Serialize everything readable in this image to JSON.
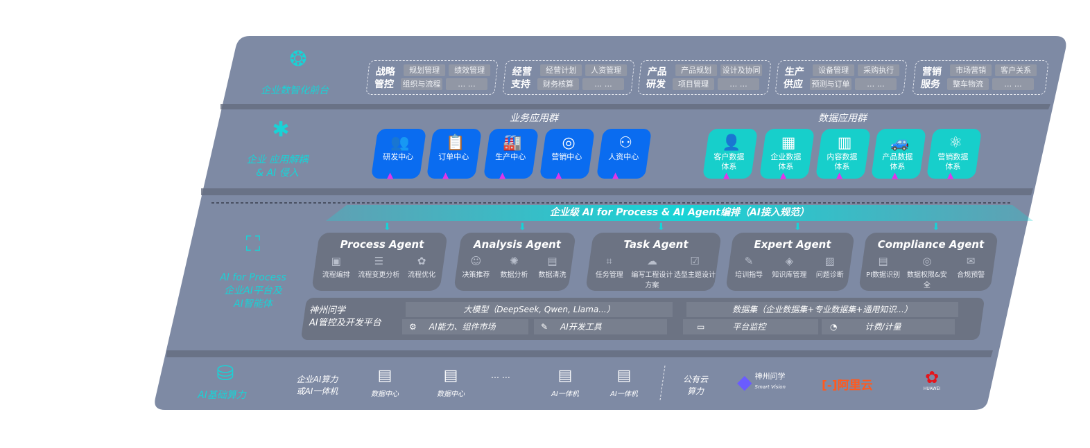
{
  "colors": {
    "panel": "#7e8aa4",
    "teal": "#19d3d6",
    "biz_blue": "#0a6cf0",
    "data_teal": "#17cfcb",
    "arrow": "#e036e8",
    "agent_box": "#6c7383"
  },
  "layers": {
    "front": {
      "label": "企业数智化前台",
      "icon": "brain-icon"
    },
    "apps": {
      "label_line1": "企业 应用解耦",
      "label_line2": "& AI 侵入",
      "icon": "molecule-icon"
    },
    "ai": {
      "label_line1": "AI for Process",
      "label_line2": "企业AI平台及",
      "label_line3": "AI智能体",
      "icon": "face-scan-icon"
    },
    "infra": {
      "label": "AI基础算力",
      "icon": "database-icon"
    }
  },
  "front_groups": [
    {
      "title": "战略管控",
      "chips": [
        "规划管理",
        "绩效管理",
        "组织与流程",
        "… …"
      ]
    },
    {
      "title": "经营支持",
      "chips": [
        "经营计划",
        "人资管理",
        "财务核算",
        "… …"
      ]
    },
    {
      "title": "产品研发",
      "chips": [
        "产品规划",
        "设计及协同",
        "项目管理",
        "… …"
      ]
    },
    {
      "title": "生产供应",
      "chips": [
        "设备管理",
        "采购执行",
        "预测与订单",
        "… …"
      ]
    },
    {
      "title": "营销服务",
      "chips": [
        "市场营销",
        "客户关系",
        "整车物流",
        "… …"
      ]
    }
  ],
  "business_apps": {
    "title": "业务应用群",
    "items": [
      {
        "label": "研发中心",
        "icon": "users-icon"
      },
      {
        "label": "订单中心",
        "icon": "clipboard-icon"
      },
      {
        "label": "生产中心",
        "icon": "factory-icon"
      },
      {
        "label": "营销中心",
        "icon": "target-icon"
      },
      {
        "label": "人资中心",
        "icon": "person-icon"
      }
    ]
  },
  "data_apps": {
    "title": "数据应用群",
    "items": [
      {
        "label": "客户数据体系",
        "icon": "user-icon"
      },
      {
        "label": "企业数据体系",
        "icon": "building-icon"
      },
      {
        "label": "内容数据体系",
        "icon": "books-icon"
      },
      {
        "label": "产品数据体系",
        "icon": "car-icon"
      },
      {
        "label": "营销数据体系",
        "icon": "atom-icon"
      }
    ]
  },
  "orchestration": "企业级 AI for Process & AI Agent编排（AI接入规范）",
  "agents": [
    {
      "title": "Process Agent",
      "caps": [
        "流程编排",
        "流程变更分析",
        "流程优化"
      ]
    },
    {
      "title": "Analysis Agent",
      "caps": [
        "决策推荐",
        "数据分析",
        "数据清洗"
      ]
    },
    {
      "title": "Task Agent",
      "caps": [
        "任务管理",
        "编写工程设计方案",
        "选型主题设计"
      ]
    },
    {
      "title": "Expert Agent",
      "caps": [
        "培训指导",
        "知识库管理",
        "问题诊断"
      ]
    },
    {
      "title": "Compliance Agent",
      "caps": [
        "PI数据识别",
        "数据权限&安全",
        "合规预警"
      ]
    }
  ],
  "platform": {
    "name_line1": "神州问学",
    "name_line2": "AI管控及开发平台",
    "llm": "大模型（DeepSeek, Qwen, Llama...）",
    "dataset": "数据集（企业数据集+专业数据集+通用知识...）",
    "market": "AI能力、组件市场",
    "devtools": "AI开发工具",
    "monitor": "平台监控",
    "billing": "计费/计量"
  },
  "infra": {
    "private_line1": "企业AI算力",
    "private_line2": "或AI一体机",
    "items": [
      "数据中心",
      "数据中心",
      "AI一体机",
      "AI一体机"
    ],
    "ellipsis": "… …",
    "public_line1": "公有云",
    "public_line2": "算力",
    "vendors": {
      "smartvision_cn": "神州问学",
      "smartvision_en": "Smart Vision",
      "aliyun": "阿里云",
      "huawei": "HUAWEI"
    }
  }
}
